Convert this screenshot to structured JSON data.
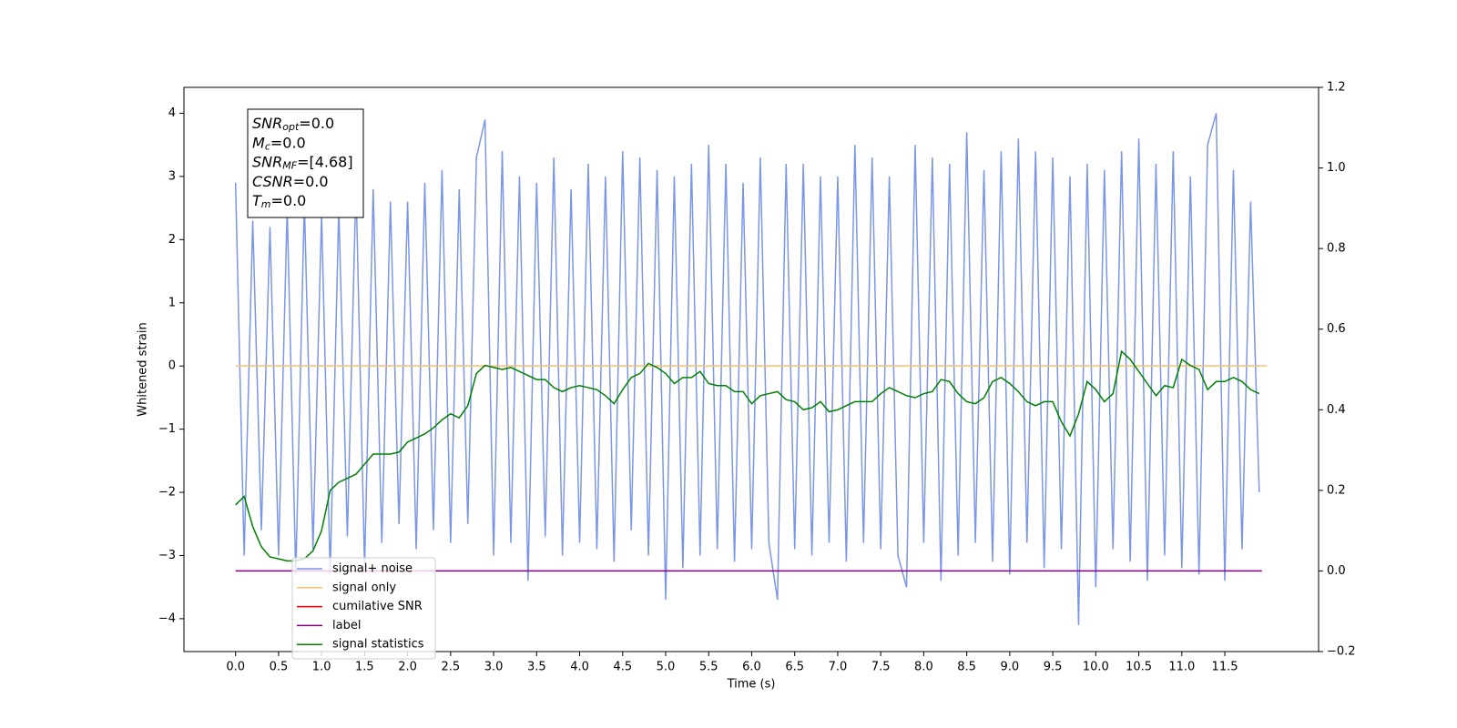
{
  "chart_data": {
    "type": "line",
    "xlabel": "Time (s)",
    "ylabel": "Whitened strain",
    "xlim": [
      -0.6,
      12.59
    ],
    "ylim": [
      -4.52,
      4.41
    ],
    "y2lim": [
      -0.2,
      1.2
    ],
    "xticks": [
      {
        "value": 0,
        "label": "0.0"
      },
      0.5,
      {
        "value": 1,
        "label": "1.0"
      },
      1.5,
      {
        "value": 2,
        "label": "2.0"
      },
      2.5,
      {
        "value": 3,
        "label": "3.0"
      },
      3.5,
      {
        "value": 4,
        "label": "4.0"
      },
      4.5,
      {
        "value": 5,
        "label": "5.0"
      },
      5.5,
      {
        "value": 6,
        "label": "6.0"
      },
      6.5,
      {
        "value": 7,
        "label": "7.0"
      },
      7.5,
      {
        "value": 8,
        "label": "8.0"
      },
      8.5,
      {
        "value": 9,
        "label": "9.0"
      },
      9.5,
      {
        "value": 10,
        "label": "10.0"
      },
      10.5,
      {
        "value": 11,
        "label": "11.0"
      },
      11.5
    ],
    "yticks": [
      {
        "value": -4,
        "label": "−4"
      },
      {
        "value": -3,
        "label": "−3"
      },
      {
        "value": -2,
        "label": "−2"
      },
      {
        "value": -1,
        "label": "−1"
      },
      0,
      1,
      2,
      3,
      4
    ],
    "y2ticks": [
      {
        "value": -0.2,
        "label": "−0.2"
      },
      {
        "value": 0,
        "label": "0.0"
      },
      0.2,
      0.4,
      0.6,
      0.8,
      {
        "value": 1,
        "label": "1.0"
      },
      1.2
    ],
    "legend": "lower left",
    "annotation": [
      {
        "symbol": "SNR",
        "subscript": "opt",
        "text": "=0.0"
      },
      {
        "symbol": "M",
        "subscript": "c",
        "text": "=0.0"
      },
      {
        "symbol": "SNR",
        "subscript": "MF",
        "text": "=[4.68]"
      },
      {
        "symbol": "CSNR",
        "text": "=0.0"
      },
      {
        "symbol": "T",
        "subscript": "m",
        "text": "=0.0"
      }
    ],
    "x": [
      0.0,
      0.1,
      0.2,
      0.3,
      0.4,
      0.5,
      0.6,
      0.7,
      0.8,
      0.9,
      1.0,
      1.1,
      1.2,
      1.3,
      1.4,
      1.5,
      1.6,
      1.7,
      1.8,
      1.9,
      2.0,
      2.1,
      2.2,
      2.3,
      2.4,
      2.5,
      2.6,
      2.7,
      2.8,
      2.9,
      3.0,
      3.1,
      3.2,
      3.3,
      3.4,
      3.5,
      3.6,
      3.7,
      3.8,
      3.9,
      4.0,
      4.1,
      4.2,
      4.3,
      4.4,
      4.5,
      4.6,
      4.7,
      4.8,
      4.9,
      5.0,
      5.1,
      5.2,
      5.3,
      5.4,
      5.5,
      5.6,
      5.7,
      5.8,
      5.9,
      6.0,
      6.1,
      6.2,
      6.3,
      6.4,
      6.5,
      6.6,
      6.7,
      6.8,
      6.9,
      7.0,
      7.1,
      7.2,
      7.3,
      7.4,
      7.5,
      7.6,
      7.7,
      7.8,
      7.9,
      8.0,
      8.1,
      8.2,
      8.3,
      8.4,
      8.5,
      8.6,
      8.7,
      8.8,
      8.9,
      9.0,
      9.1,
      9.2,
      9.3,
      9.4,
      9.5,
      9.6,
      9.7,
      9.8,
      9.9,
      10.0,
      10.1,
      10.2,
      10.3,
      10.4,
      10.5,
      10.6,
      10.7,
      10.8,
      10.9,
      11.0,
      11.1,
      11.2,
      11.3,
      11.4,
      11.5,
      11.6,
      11.7,
      11.8,
      11.9
    ],
    "series": [
      {
        "name": "signal+ noise",
        "color": "#7b96e8",
        "values": [
          2.9,
          -3.0,
          2.3,
          -2.6,
          2.2,
          -3.0,
          2.5,
          -3.3,
          2.6,
          -2.9,
          2.4,
          -3.3,
          2.5,
          -2.7,
          2.9,
          -3.2,
          2.8,
          -2.8,
          2.6,
          -2.5,
          2.6,
          -2.9,
          2.9,
          -2.6,
          3.1,
          -2.8,
          2.8,
          -2.5,
          3.3,
          3.9,
          -3.0,
          3.4,
          -2.8,
          3.0,
          -3.4,
          2.9,
          -2.7,
          3.3,
          -3.0,
          2.8,
          -2.8,
          3.2,
          -2.9,
          3.0,
          -3.1,
          3.4,
          -2.6,
          3.3,
          -3.0,
          3.1,
          -3.7,
          3.0,
          -3.2,
          3.2,
          -3.0,
          3.5,
          -2.9,
          3.2,
          -3.1,
          2.9,
          -2.9,
          3.3,
          -2.8,
          -3.7,
          3.2,
          -2.9,
          3.2,
          -3.0,
          3.0,
          -2.8,
          3.0,
          -3.1,
          3.5,
          -2.8,
          3.3,
          -2.9,
          3.0,
          -3.0,
          -3.5,
          3.5,
          -2.8,
          3.3,
          -3.4,
          3.2,
          -3.0,
          3.7,
          -2.8,
          3.1,
          -3.1,
          3.4,
          -3.3,
          3.6,
          -2.8,
          3.4,
          -3.2,
          3.3,
          -2.9,
          3.0,
          -4.1,
          3.2,
          -3.5,
          3.1,
          -2.9,
          3.4,
          -3.1,
          3.6,
          -3.4,
          3.2,
          -3.0,
          3.4,
          -3.2,
          3.0,
          -3.3,
          3.5,
          4.0,
          -3.4,
          3.1,
          -2.9,
          2.6,
          -2.0
        ]
      },
      {
        "name": "signal only",
        "color": "#ffbe6b",
        "x": [
          0.0,
          11.99
        ],
        "values": [
          0,
          0
        ]
      },
      {
        "name": "cumilative SNR",
        "color": "#ff0000"
      },
      {
        "name": "label",
        "color": "#800080",
        "axis": "y2",
        "x": [
          0.0,
          11.93
        ],
        "values": [
          0,
          0
        ]
      },
      {
        "name": "signal statistics",
        "color": "#008000",
        "axis": "y2",
        "values": [
          0.164,
          0.185,
          0.11,
          0.06,
          0.035,
          0.03,
          0.025,
          0.025,
          0.03,
          0.05,
          0.1,
          0.2,
          0.22,
          0.23,
          0.24,
          0.265,
          0.29,
          0.29,
          0.29,
          0.295,
          0.32,
          0.33,
          0.34,
          0.355,
          0.375,
          0.39,
          0.38,
          0.41,
          0.49,
          0.51,
          0.505,
          0.5,
          0.505,
          0.495,
          0.485,
          0.475,
          0.475,
          0.455,
          0.445,
          0.455,
          0.46,
          0.455,
          0.45,
          0.435,
          0.415,
          0.45,
          0.48,
          0.49,
          0.515,
          0.505,
          0.49,
          0.465,
          0.48,
          0.48,
          0.495,
          0.465,
          0.46,
          0.46,
          0.445,
          0.445,
          0.415,
          0.435,
          0.44,
          0.445,
          0.425,
          0.42,
          0.4,
          0.405,
          0.42,
          0.395,
          0.4,
          0.41,
          0.42,
          0.42,
          0.42,
          0.44,
          0.455,
          0.445,
          0.435,
          0.43,
          0.44,
          0.445,
          0.475,
          0.47,
          0.44,
          0.42,
          0.415,
          0.43,
          0.47,
          0.48,
          0.465,
          0.445,
          0.42,
          0.41,
          0.42,
          0.42,
          0.37,
          0.335,
          0.39,
          0.47,
          0.45,
          0.42,
          0.44,
          0.545,
          0.525,
          0.495,
          0.465,
          0.435,
          0.46,
          0.455,
          0.525,
          0.51,
          0.5,
          0.45,
          0.47,
          0.47,
          0.48,
          0.47,
          0.45,
          0.44
        ]
      }
    ]
  }
}
